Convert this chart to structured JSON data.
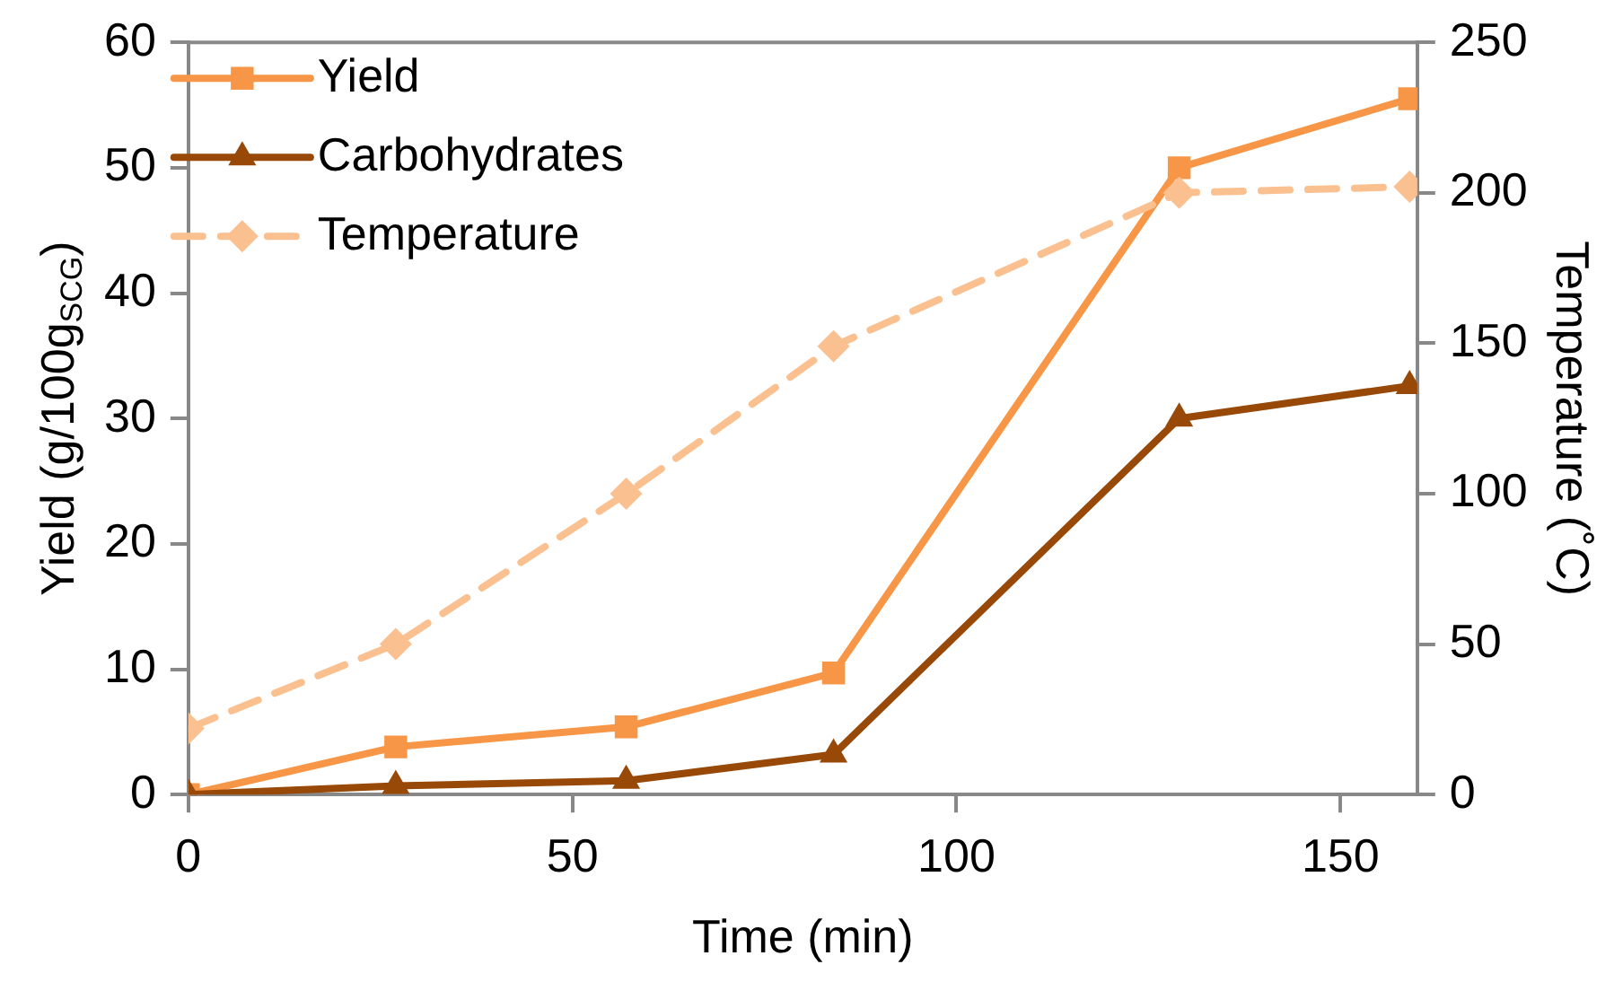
{
  "chart_data": {
    "type": "line",
    "xlabel": "Time (min)",
    "ylabel": "Yield (g/100g$_{SCG}$)",
    "y2label": "Temperature (˚C)",
    "x": [
      0,
      27,
      57,
      84,
      129,
      159
    ],
    "xlim": [
      0,
      160
    ],
    "xticks": [
      0,
      50,
      100,
      150
    ],
    "ylim": [
      0,
      60
    ],
    "yticks": [
      0,
      10,
      20,
      30,
      40,
      50,
      60
    ],
    "y2lim": [
      0,
      250
    ],
    "y2ticks": [
      0,
      50,
      100,
      150,
      200,
      250
    ],
    "series": [
      {
        "name": "Yield",
        "color": "#f79646",
        "values": [
          0,
          3.8,
          5.4,
          9.7,
          50.0,
          55.5
        ],
        "marker": "square",
        "line_style": "solid"
      },
      {
        "name": "Carbohydrates",
        "color": "#984807",
        "values": [
          0,
          0.7,
          1.1,
          3.2,
          30.0,
          32.6
        ],
        "marker": "triangle",
        "line_style": "solid"
      },
      {
        "name": "Temperature",
        "color": "#fac090",
        "values": [
          22,
          50,
          100,
          149,
          200,
          202
        ],
        "marker": "diamond",
        "line_style": "dashed",
        "axis": "y2"
      }
    ],
    "grid": false,
    "legend": "top left"
  }
}
